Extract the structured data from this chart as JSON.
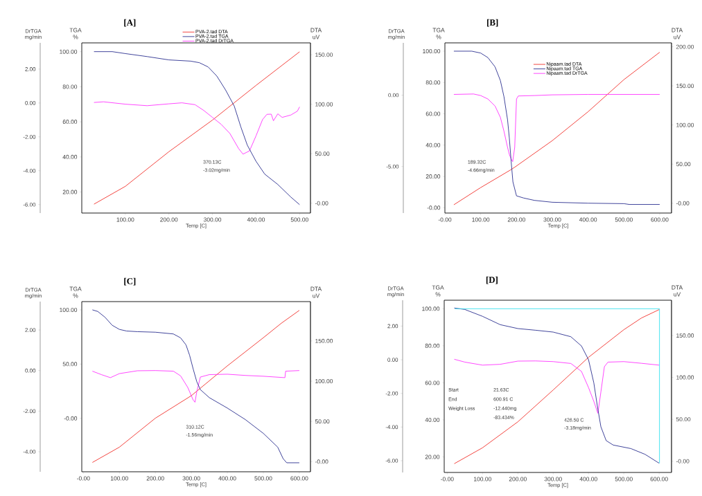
{
  "chart_data": [
    {
      "type": "line",
      "title": "[A]",
      "xlabel": "Temp [C]",
      "ylabel": "TGA %",
      "y2label": "DTA uV",
      "y3label": "DrTGA mg/min",
      "legend": "top",
      "xlim": [
        0,
        525
      ],
      "xticks": [
        {
          "value": 100,
          "label": "100.00"
        },
        {
          "value": 200,
          "label": "200.00"
        },
        {
          "value": 300,
          "label": "300.00"
        },
        {
          "value": 400,
          "label": "400.00"
        },
        {
          "value": 500,
          "label": "500.00"
        }
      ],
      "ylim": [
        8,
        105
      ],
      "yticks": [
        {
          "value": 20,
          "label": "20.00"
        },
        {
          "value": 40,
          "label": "40.00"
        },
        {
          "value": 60,
          "label": "60.00"
        },
        {
          "value": 80,
          "label": "80.00"
        },
        {
          "value": 100,
          "label": "100.00"
        }
      ],
      "y2lim": [
        -10,
        162
      ],
      "y2ticks": [
        {
          "value": 0,
          "label": "-0.00"
        },
        {
          "value": 50,
          "label": "50.00"
        },
        {
          "value": 100,
          "label": "100.00"
        },
        {
          "value": 150,
          "label": "150.00"
        }
      ],
      "y3lim": [
        -6.5,
        3.55
      ],
      "y3ticks": [
        {
          "value": -6,
          "label": "-6.00"
        },
        {
          "value": -4,
          "label": "-4.00"
        },
        {
          "value": -2,
          "label": "-2.00"
        },
        {
          "value": 0,
          "label": "0.00"
        },
        {
          "value": 2,
          "label": "2.00"
        }
      ],
      "annotations": [
        "370.13C",
        "-3.02mg/min"
      ],
      "series": [
        {
          "name": "PVA-2.tad DTA",
          "color": "#f2302a",
          "axis": "y2",
          "x": [
            28,
            100,
            200,
            300,
            400,
            500
          ],
          "values": [
            -1,
            17,
            52,
            84,
            119,
            153
          ]
        },
        {
          "name": "PVA-2.tad TGA",
          "color": "#2b2f8f",
          "axis": "y",
          "x": [
            28,
            70,
            100,
            150,
            200,
            250,
            270,
            290,
            310,
            330,
            350,
            365,
            380,
            400,
            420,
            450,
            480,
            500
          ],
          "values": [
            100,
            100,
            98.9,
            97.2,
            95.3,
            94.6,
            93.7,
            91.3,
            86.1,
            78.2,
            69.0,
            57.2,
            46.7,
            37.5,
            30.2,
            24.3,
            17.1,
            12.8
          ]
        },
        {
          "name": "PVA-2.tad DrTGA",
          "color": "#ff33ff",
          "axis": "y3",
          "x": [
            28,
            50,
            100,
            150,
            200,
            230,
            260,
            280,
            300,
            320,
            340,
            360,
            370.13,
            385,
            400,
            415,
            425,
            435,
            440,
            450,
            460,
            480,
            495,
            500
          ],
          "values": [
            0.03,
            0.07,
            -0.07,
            -0.16,
            -0.05,
            0.01,
            -0.1,
            -0.44,
            -0.85,
            -1.26,
            -1.8,
            -2.69,
            -3.02,
            -2.83,
            -1.94,
            -0.98,
            -0.67,
            -0.66,
            -1.05,
            -0.64,
            -0.85,
            -0.71,
            -0.48,
            -0.23
          ]
        }
      ]
    },
    {
      "type": "line",
      "title": "[B]",
      "xlabel": "Temp [C]",
      "ylabel": "TGA %",
      "y2label": "DTA uV",
      "y3label": "DrTGA mg/min",
      "legend": "top right",
      "xlim": [
        0,
        633
      ],
      "xticks": [
        {
          "value": 0,
          "label": "-0.00"
        },
        {
          "value": 100,
          "label": "100.00"
        },
        {
          "value": 200,
          "label": "200.00"
        },
        {
          "value": 300,
          "label": "300.00"
        },
        {
          "value": 400,
          "label": "400.00"
        },
        {
          "value": 500,
          "label": "500.00"
        },
        {
          "value": 600,
          "label": "600.00"
        }
      ],
      "ylim": [
        -3.4,
        105.3
      ],
      "yticks": [
        {
          "value": 0,
          "label": "-0.00"
        },
        {
          "value": 20,
          "label": "20.00"
        },
        {
          "value": 40,
          "label": "40.00"
        },
        {
          "value": 60,
          "label": "60.00"
        },
        {
          "value": 80,
          "label": "80.00"
        },
        {
          "value": 100,
          "label": "100.00"
        }
      ],
      "y2lim": [
        -12.6,
        205
      ],
      "y2ticks": [
        {
          "value": 0,
          "label": "-0.00"
        },
        {
          "value": 50,
          "label": "50.00"
        },
        {
          "value": 100,
          "label": "100.00"
        },
        {
          "value": 150,
          "label": "150.00"
        },
        {
          "value": 200,
          "label": "200.00"
        }
      ],
      "y3lim": [
        -8.26,
        3.66
      ],
      "y3ticks": [
        {
          "value": -5,
          "label": "-5.00"
        },
        {
          "value": 0,
          "label": "0.00"
        }
      ],
      "annotations": [
        "189.32C",
        "-4.66mg/min"
      ],
      "series": [
        {
          "name": "Nipaam.tad DTA",
          "color": "#f2302a",
          "axis": "y2",
          "x": [
            25,
            100,
            185,
            195,
            300,
            400,
            500,
            600
          ],
          "values": [
            -2,
            20,
            43,
            46,
            80,
            117,
            158,
            193
          ]
        },
        {
          "name": "Nipaam.tad TGA",
          "color": "#2b2f8f",
          "axis": "y",
          "x": [
            25,
            75,
            100,
            120,
            140,
            155,
            165,
            175,
            180,
            185,
            190,
            200,
            220,
            250,
            300,
            400,
            500,
            515,
            600
          ],
          "values": [
            100,
            100,
            98.8,
            95.9,
            90,
            81.2,
            70.9,
            56.2,
            44.4,
            29.7,
            16.5,
            7.6,
            6.2,
            4.7,
            3.5,
            2.9,
            2.6,
            2.1,
            2.1
          ]
        },
        {
          "name": "Nipaam.tad DrTGA",
          "color": "#ff33ff",
          "axis": "y3",
          "x": [
            25,
            80,
            100,
            120,
            140,
            155,
            165,
            175,
            180,
            185,
            189.32,
            195,
            200,
            205,
            250,
            300,
            400,
            500,
            600
          ],
          "values": [
            0.05,
            0.08,
            -0.03,
            -0.27,
            -0.76,
            -1.56,
            -2.53,
            -3.66,
            -4.15,
            -4.47,
            -4.66,
            -3.66,
            -0.27,
            -0.06,
            -0.03,
            0.02,
            0.05,
            0.05,
            0.05
          ]
        }
      ]
    },
    {
      "type": "line",
      "title": "[C]",
      "xlabel": "Temp [C]",
      "ylabel": "TGA %",
      "y2label": "DTA uV",
      "y3label": "DrTGA mg/min",
      "xlim": [
        -4.5,
        631
      ],
      "xticks": [
        {
          "value": 0,
          "label": "-0.00"
        },
        {
          "value": 100,
          "label": "100.00"
        },
        {
          "value": 200,
          "label": "200.00"
        },
        {
          "value": 300,
          "label": "300.00"
        },
        {
          "value": 400,
          "label": "400.00"
        },
        {
          "value": 500,
          "label": "500.00"
        },
        {
          "value": 600,
          "label": "600.00"
        }
      ],
      "ylim": [
        -49.2,
        107.6
      ],
      "yticks": [
        {
          "value": 0,
          "label": "-0.00"
        },
        {
          "value": 50,
          "label": "50.00"
        },
        {
          "value": 100,
          "label": "100.00"
        }
      ],
      "y2lim": [
        -12.6,
        198.9
      ],
      "y2ticks": [
        {
          "value": 0,
          "label": "-0.00"
        },
        {
          "value": 50,
          "label": "50.00"
        },
        {
          "value": 100,
          "label": "100.00"
        },
        {
          "value": 150,
          "label": "150.00"
        }
      ],
      "y3lim": [
        -4.99,
        3.4
      ],
      "y3ticks": [
        {
          "value": -4,
          "label": "-4.00"
        },
        {
          "value": -2,
          "label": "-2.00"
        },
        {
          "value": 0,
          "label": "0.00"
        },
        {
          "value": 2,
          "label": "2.00"
        }
      ],
      "annotations": [
        "310.12C",
        "-1.56mg/min"
      ],
      "series": [
        {
          "color": "#f2302a",
          "axis": "y2",
          "x": [
            25,
            100,
            200,
            300,
            400,
            500,
            550,
            600
          ],
          "values": [
            -1,
            18,
            54,
            82,
            119,
            154,
            172,
            188
          ]
        },
        {
          "color": "#2b2f8f",
          "axis": "y",
          "x": [
            25,
            40,
            60,
            80,
            100,
            120,
            150,
            200,
            250,
            270,
            285,
            295,
            305,
            315,
            325,
            350,
            400,
            450,
            500,
            540,
            555,
            565,
            600
          ],
          "values": [
            100,
            98.5,
            93.2,
            85.8,
            82,
            80.5,
            79.9,
            79.4,
            77.8,
            74.2,
            67.8,
            58.3,
            45.6,
            33.9,
            26.5,
            19.1,
            9.5,
            -1.1,
            -13.8,
            -26.5,
            -37.1,
            -40.9,
            -40.9
          ]
        },
        {
          "color": "#ff33ff",
          "axis": "y3",
          "x": [
            25,
            50,
            75,
            100,
            150,
            200,
            250,
            270,
            290,
            305,
            310.12,
            315,
            325,
            350,
            400,
            450,
            500,
            560,
            562,
            600
          ],
          "values": [
            -0.03,
            -0.2,
            -0.35,
            -0.15,
            -0.01,
            0,
            -0.03,
            -0.26,
            -0.83,
            -1.45,
            -1.56,
            -1.05,
            -0.32,
            -0.2,
            -0.18,
            -0.24,
            -0.28,
            -0.35,
            -0.03,
            0
          ]
        }
      ]
    },
    {
      "type": "line",
      "title": "[D]",
      "xlabel": "Temp [C]",
      "ylabel": "TGA %",
      "y2label": "DTA uV",
      "y3label": "DrTGA mg/min",
      "xlim": [
        -8.5,
        635
      ],
      "xticks": [
        {
          "value": 0,
          "label": "-0.00"
        },
        {
          "value": 100,
          "label": "100.00"
        },
        {
          "value": 200,
          "label": "200.00"
        },
        {
          "value": 300,
          "label": "300.00"
        },
        {
          "value": 400,
          "label": "400.00"
        },
        {
          "value": 500,
          "label": "500.00"
        },
        {
          "value": 600,
          "label": "600.00"
        }
      ],
      "ylim": [
        11.6,
        104.6
      ],
      "yticks": [
        {
          "value": 20,
          "label": "20.00"
        },
        {
          "value": 40,
          "label": "40.00"
        },
        {
          "value": 60,
          "label": "60.00"
        },
        {
          "value": 80,
          "label": "80.00"
        },
        {
          "value": 100,
          "label": "100.00"
        }
      ],
      "y2lim": [
        -13.5,
        192.2
      ],
      "y2ticks": [
        {
          "value": 0,
          "label": "-0.00"
        },
        {
          "value": 50,
          "label": "50.00"
        },
        {
          "value": 100,
          "label": "100.00"
        },
        {
          "value": 150,
          "label": "150.00"
        }
      ],
      "y3lim": [
        -6.7,
        3.54
      ],
      "y3ticks": [
        {
          "value": -6,
          "label": "-6.00"
        },
        {
          "value": -4,
          "label": "-4.00"
        },
        {
          "value": -2,
          "label": "-2.00"
        },
        {
          "value": 0,
          "label": "0.00"
        },
        {
          "value": 2,
          "label": "2.00"
        }
      ],
      "annotations": [
        "Start",
        "End",
        "Weight Loss",
        "21.63C",
        "600.91 C",
        "-12.440mg",
        "-83.434%",
        "426.50 C",
        "-3.18mg/min"
      ],
      "series": [
        {
          "color": "#f2302a",
          "axis": "y2",
          "x": [
            20,
            100,
            200,
            300,
            400,
            500,
            550,
            600
          ],
          "values": [
            -3,
            16,
            47,
            85,
            124,
            157,
            171,
            181
          ]
        },
        {
          "color": "#2b2f8f",
          "axis": "y",
          "x": [
            20,
            50,
            100,
            150,
            200,
            250,
            300,
            350,
            380,
            400,
            415,
            425,
            435,
            450,
            470,
            520,
            560,
            600
          ],
          "values": [
            100.4,
            99.6,
            95.9,
            91.4,
            89.3,
            88.4,
            87.4,
            84.9,
            79.9,
            72.5,
            60,
            47.5,
            36.3,
            28.8,
            26.4,
            24.5,
            21.4,
            16.6
          ]
        },
        {
          "color": "#ff33ff",
          "axis": "y3",
          "x": [
            20,
            50,
            100,
            150,
            200,
            250,
            300,
            350,
            380,
            400,
            415,
            426.5,
            435,
            445,
            455,
            500,
            550,
            600
          ],
          "values": [
            0.03,
            -0.14,
            -0.32,
            -0.27,
            -0.08,
            -0.07,
            -0.11,
            -0.22,
            -0.69,
            -1.65,
            -2.47,
            -3.18,
            -1.92,
            -0.41,
            -0.14,
            -0.11,
            -0.21,
            -0.32
          ]
        },
        {
          "color": "#33e0ee",
          "axis": "y",
          "x": [
            21.63,
            600.91,
            600.91
          ],
          "values": [
            100,
            100,
            16.6
          ]
        }
      ]
    }
  ]
}
